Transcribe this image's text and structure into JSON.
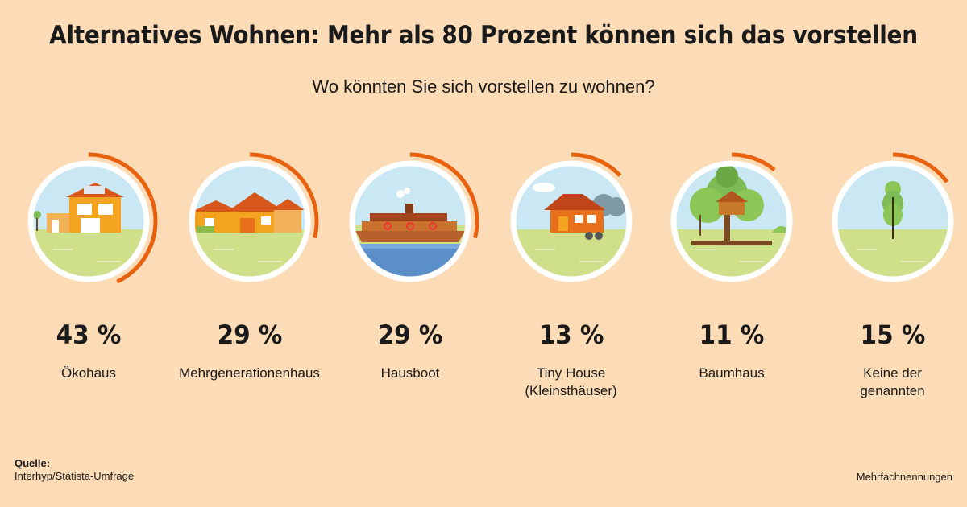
{
  "title": "Alternatives Wohnen: Mehr als 80 Prozent können sich das vorstellen",
  "subtitle": "Wo könnten Sie sich vorstellen zu wohnen?",
  "source_label": "Quelle:",
  "source_text": "Interhyp/Statista-Umfrage",
  "note": "Mehrfachnennungen",
  "colors": {
    "background": "#fcdcb6",
    "accent": "#e8610f",
    "sky": "#c9e8f4",
    "grass": "#cfe08a"
  },
  "chart_data": {
    "type": "bar",
    "title": "Alternatives Wohnen: Mehr als 80 Prozent können sich das vorstellen",
    "subtitle": "Wo könnten Sie sich vorstellen zu wohnen?",
    "unit": "%",
    "categories": [
      "Ökohaus",
      "Mehrgenerationenhaus",
      "Hausboot",
      "Tiny House (Kleinsthäuser)",
      "Baumhaus",
      "Keine der genannten"
    ],
    "values": [
      43,
      29,
      29,
      13,
      11,
      15
    ],
    "value_labels": [
      "43 %",
      "29 %",
      "29 %",
      "13 %",
      "11 %",
      "15 %"
    ],
    "display_labels": [
      "Ökohaus",
      "Mehrgenerationenhaus",
      "Hausboot",
      "Tiny House\n(Kleinsthäuser)",
      "Baumhaus",
      "Keine der\ngenannten"
    ],
    "icons": [
      "eco-house-icon",
      "multigenerational-house-icon",
      "houseboat-icon",
      "tiny-house-icon",
      "treehouse-icon",
      "tree-icon"
    ]
  }
}
